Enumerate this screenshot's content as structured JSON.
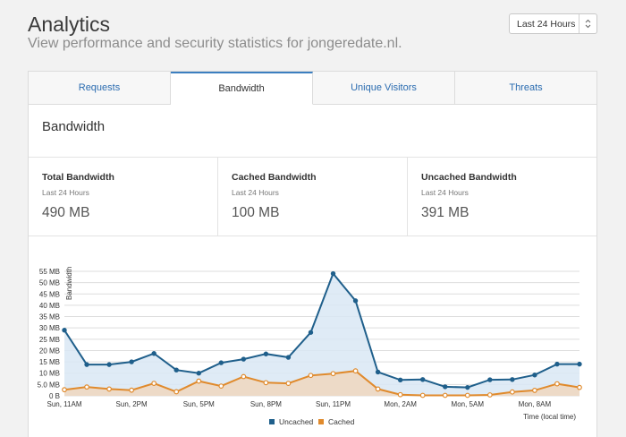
{
  "header": {
    "title": "Analytics",
    "subtitle": "View performance and security statistics for jongeredate.nl.",
    "range_select": "Last 24 Hours",
    "range_arrows": "⌃⌄"
  },
  "tabs": [
    {
      "label": "Requests"
    },
    {
      "label": "Bandwidth"
    },
    {
      "label": "Unique Visitors"
    },
    {
      "label": "Threats"
    }
  ],
  "active_tab": "Bandwidth",
  "section": {
    "title": "Bandwidth"
  },
  "stats": [
    {
      "title": "Total Bandwidth",
      "period": "Last 24 Hours",
      "value": "490 MB"
    },
    {
      "title": "Cached Bandwidth",
      "period": "Last 24 Hours",
      "value": "100 MB"
    },
    {
      "title": "Uncached Bandwidth",
      "period": "Last 24 Hours",
      "value": "391 MB"
    }
  ],
  "colors": {
    "uncached_line": "#1f5f8b",
    "uncached_fill": "#d9e7f5",
    "cached_line": "#e08a2c",
    "cached_fill": "#eed8c2",
    "grid": "#dddddd"
  },
  "chart_data": {
    "type": "area",
    "ylabel": "Bandwidth",
    "xlabel": "Time (local time)",
    "ylim": [
      0,
      55
    ],
    "y_ticks": [
      "0 B",
      "5.0 MB",
      "10 MB",
      "15 MB",
      "20 MB",
      "25 MB",
      "30 MB",
      "35 MB",
      "40 MB",
      "45 MB",
      "50 MB",
      "55 MB"
    ],
    "x_tick_labels": [
      "Sun, 11AM",
      "Sun, 2PM",
      "Sun, 5PM",
      "Sun, 8PM",
      "Sun, 11PM",
      "Mon, 2AM",
      "Mon, 5AM",
      "Mon, 8AM"
    ],
    "x_tick_positions": [
      0,
      3,
      6,
      9,
      12,
      15,
      18,
      21
    ],
    "legend_position": "bottom",
    "series": [
      {
        "name": "Uncached",
        "values": [
          29,
          13.8,
          13.8,
          15,
          18.7,
          11.4,
          10,
          14.6,
          16.2,
          18.5,
          17,
          28,
          54,
          42,
          10.5,
          7,
          7.2,
          4,
          3.7,
          7.1,
          7.2,
          9.2,
          14,
          14
        ]
      },
      {
        "name": "Cached",
        "values": [
          2.7,
          3.9,
          3,
          2.5,
          5.5,
          1.8,
          6.5,
          4.3,
          8.5,
          5.8,
          5.5,
          9,
          9.8,
          11,
          3,
          0.5,
          0.2,
          0.2,
          0.2,
          0.4,
          1.7,
          2.4,
          5.3,
          3.7
        ]
      }
    ]
  }
}
